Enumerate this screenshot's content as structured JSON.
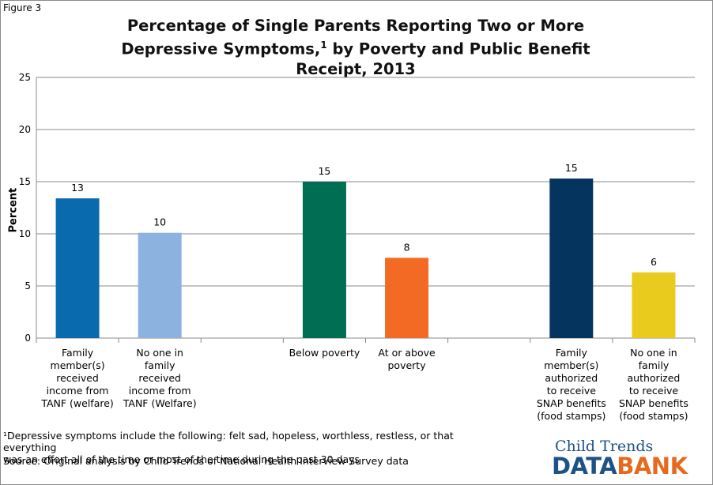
{
  "figure_label": "Figure 3",
  "title_line1": "Percentage of Single Parents Reporting Two or More",
  "title_line2a": "Depressive Symptoms,",
  "title_sup": "1",
  "title_line2b": " by Poverty and Public Benefit",
  "title_line3": "Receipt, 2013",
  "footnote_line1": "¹Depressive symptoms include the following: felt sad, hopeless, worthless, restless, or that everything",
  "footnote_line2": "was an effort all of the time or most of the time during the past 30 days",
  "source": "Source: Original analysis by Child Trends of National Health Interview Survey data",
  "logo": {
    "top": "Child Trends",
    "data": "DATA",
    "bank": "BANK"
  },
  "chart_data": {
    "type": "bar",
    "ylabel": "Percent",
    "ylim": [
      0,
      25
    ],
    "yticks": [
      0,
      5,
      10,
      15,
      20,
      25
    ],
    "grid": true,
    "categories": [
      [
        "Family",
        "member(s)",
        "received",
        "income from",
        "TANF (welfare)"
      ],
      [
        "No one in",
        "family",
        "received",
        "income from",
        "TANF (Welfare)"
      ],
      [],
      [
        "Below poverty"
      ],
      [
        "At or above",
        "poverty"
      ],
      [],
      [
        "Family",
        "member(s)",
        "authorized",
        "to receive",
        "SNAP benefits",
        "(food stamps)"
      ],
      [
        "No one in",
        "family",
        "authorized",
        "to receive",
        "SNAP benefits",
        "(food stamps)"
      ]
    ],
    "values": [
      13.4,
      10.1,
      null,
      15.0,
      7.7,
      null,
      15.3,
      6.3
    ],
    "data_labels": [
      "13",
      "10",
      "",
      "15",
      "8",
      "",
      "15",
      "6"
    ],
    "colors": [
      "#0a6aae",
      "#8cb3df",
      null,
      "#006e52",
      "#f26a24",
      null,
      "#05355e",
      "#e8cb1c"
    ]
  }
}
